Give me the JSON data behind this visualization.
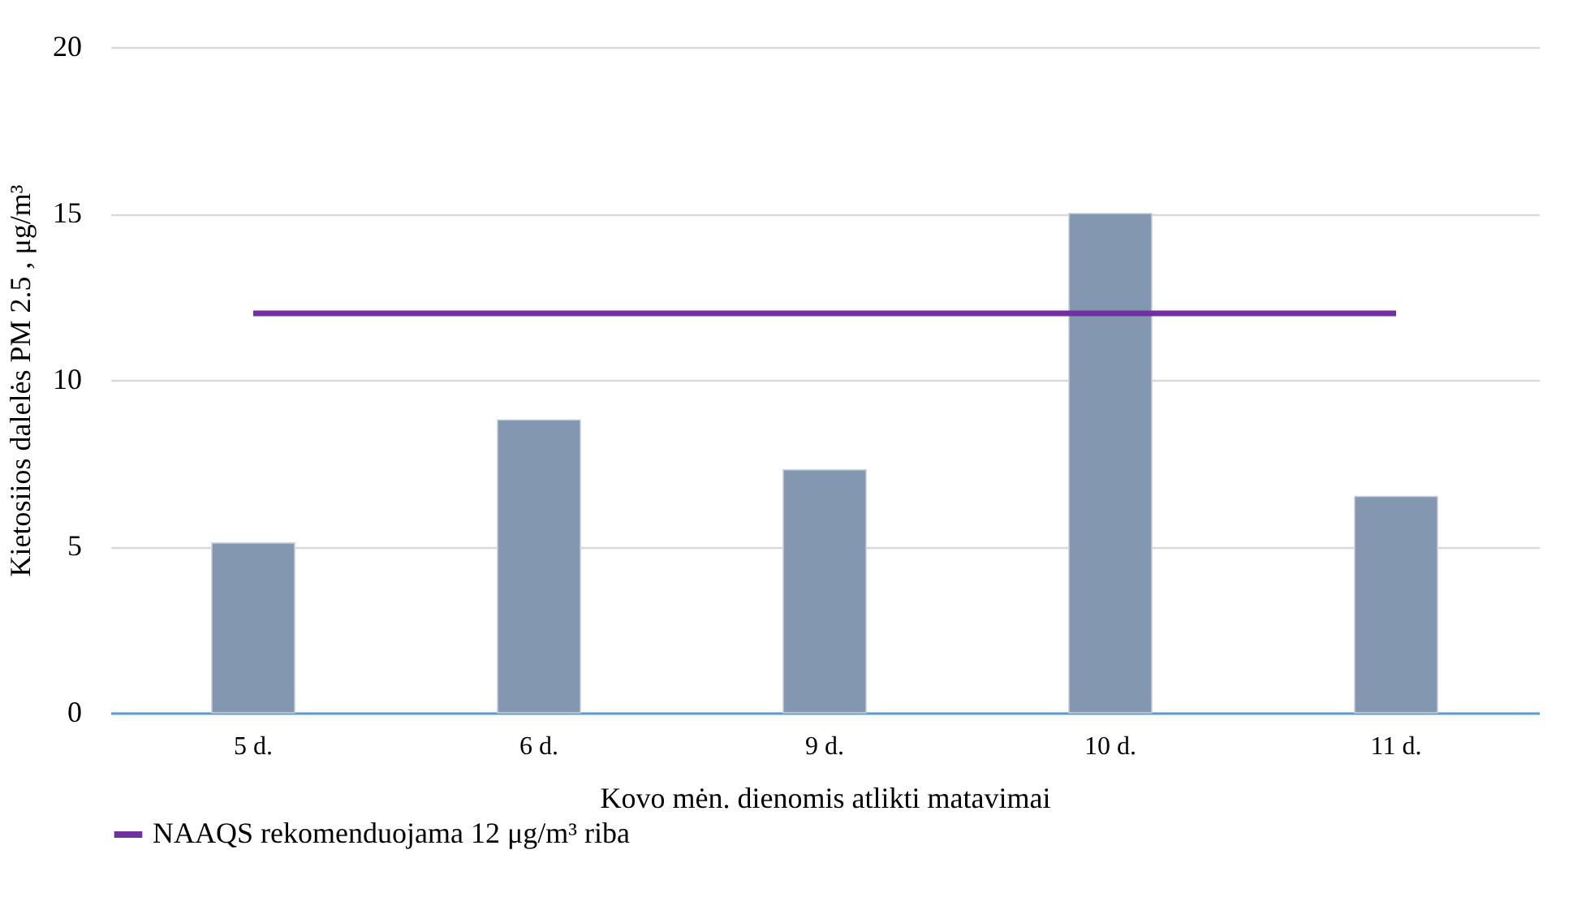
{
  "chart_data": {
    "type": "bar",
    "xlabel": "Kovo mėn. dienomis atlikti matavimai",
    "ylabel": "Kietosiios dalelės PM 2.5 , μg/m³",
    "categories": [
      "5 d.",
      "6 d.",
      "9 d.",
      "10 d.",
      "11 d."
    ],
    "series": [
      {
        "color": "#8497b0",
        "values": [
          5.1,
          8.8,
          7.3,
          15.0,
          6.5
        ]
      },
      {
        "type": "line",
        "name": "NAAQS rekomenduojama 12 μg/m³ riba",
        "color": "#7030a0",
        "values": [
          12,
          12,
          12,
          12,
          12
        ]
      }
    ],
    "ylim": [
      0,
      20
    ],
    "yticks": [
      0,
      5,
      10,
      15,
      20
    ],
    "grid": "y",
    "legend": "bottom"
  }
}
